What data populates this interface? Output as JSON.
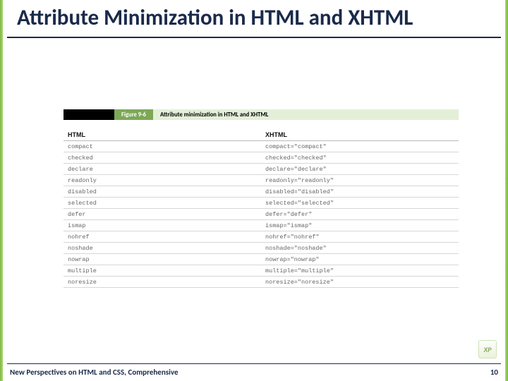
{
  "slide": {
    "title": "Attribute Minimization in HTML and XHTML",
    "footer_text": "New Perspectives on HTML and CSS, Comprehensive",
    "page_number": "10",
    "badge_text": "XP"
  },
  "figure": {
    "tag": "Figure 9-6",
    "caption": "Attribute minimization in HTML and XHTML",
    "columns": [
      "HTML",
      "XHTML"
    ],
    "rows": [
      [
        "compact",
        "compact=\"compact\""
      ],
      [
        "checked",
        "checked=\"checked\""
      ],
      [
        "declare",
        "declare=\"declare\""
      ],
      [
        "readonly",
        "readonly=\"readonly\""
      ],
      [
        "disabled",
        "disabled=\"disabled\""
      ],
      [
        "selected",
        "selected=\"selected\""
      ],
      [
        "defer",
        "defer=\"defer\""
      ],
      [
        "ismap",
        "ismap=\"ismap\""
      ],
      [
        "nohref",
        "nohref=\"nohref\""
      ],
      [
        "noshade",
        "noshade=\"noshade\""
      ],
      [
        "nowrap",
        "nowrap=\"nowrap\""
      ],
      [
        "multiple",
        "multiple=\"multiple\""
      ],
      [
        "noresize",
        "noresize=\"noresize\""
      ]
    ]
  },
  "colors": {
    "title_color": "#1a2a4a",
    "accent_green": "#7da856",
    "light_green": "#e4efd8",
    "edge_green": "#7fb942",
    "row_border": "#d6d6d6",
    "mono_text": "#666666"
  }
}
